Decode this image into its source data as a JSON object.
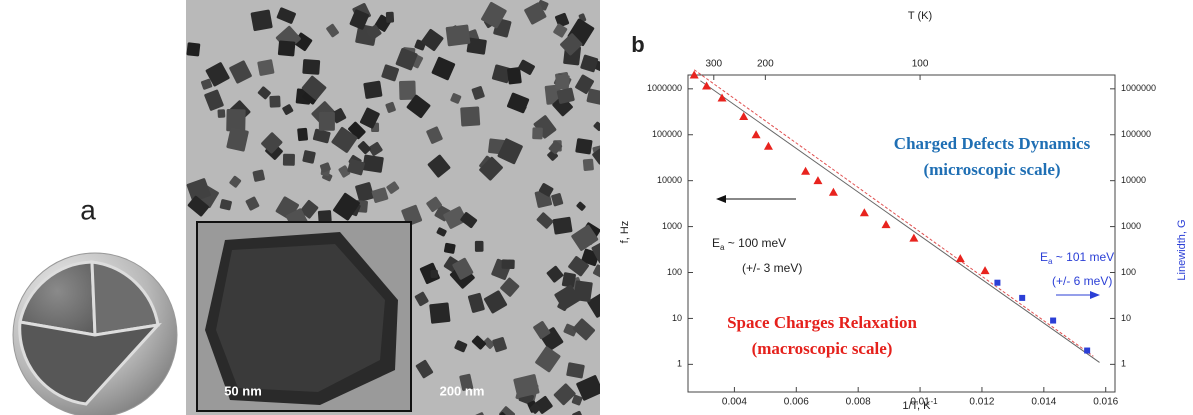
{
  "figure": {
    "label": "a",
    "inset_scale": "50 nm",
    "scale": "200 nm"
  },
  "chart_data": {
    "type": "scatter",
    "panel_label": "b",
    "xlabel": {
      "text": "1/T, K",
      "sup": "-1"
    },
    "x2label": "T (K)",
    "ylabel": "f, Hz",
    "y2label": "Linewidth, G",
    "xlim": [
      0.0025,
      0.0163
    ],
    "xticks": [
      0.004,
      0.006,
      0.008,
      0.01,
      0.012,
      0.014,
      0.016
    ],
    "x2ticks": [
      300,
      200,
      100
    ],
    "x2scale": "reciprocal",
    "ylim": [
      0.25,
      2000000
    ],
    "yticks": [
      1,
      10,
      100,
      1000,
      10000,
      100000,
      1000000
    ],
    "y2lim": [
      0.25,
      2000000
    ],
    "y2ticks": [
      1,
      10,
      100,
      1000,
      10000,
      100000,
      1000000
    ],
    "yscale": "log",
    "y2color": "#2b3fd6",
    "series": [
      {
        "color": "#e8231e",
        "marker": "triangle",
        "x": [
          0.0027,
          0.0031,
          0.0036,
          0.0043,
          0.0047,
          0.0051,
          0.0063,
          0.0067,
          0.0072,
          0.0082,
          0.0089,
          0.0098,
          0.0113,
          0.0121
        ],
        "values": [
          2000000,
          1150000,
          630000,
          250000,
          100000,
          56000,
          16000,
          10000,
          5600,
          2000,
          1100,
          560,
          200,
          110
        ]
      },
      {
        "color": "#2b3fd6",
        "marker": "square",
        "axis": "y2",
        "x": [
          0.0125,
          0.0133,
          0.0143,
          0.0154
        ],
        "values": [
          60,
          28,
          9,
          2
        ]
      }
    ],
    "fit_lines": [
      {
        "color": "#e05050",
        "dash": true,
        "x": [
          0.0027,
          0.0156
        ],
        "values": [
          2600000,
          1.5
        ]
      },
      {
        "color": "#666666",
        "dash": false,
        "x": [
          0.0029,
          0.0158
        ],
        "values": [
          1500000,
          1.1
        ]
      }
    ],
    "annotations": [
      "Charged Defects Dynamics",
      "(microscopic scale)",
      {
        "text": "E",
        "sub": "a",
        "rest": " ~ 100 meV"
      },
      "(+/- 3 meV)",
      {
        "text": "E",
        "sub": "a",
        "rest": " ~ 101 meV"
      },
      "(+/- 6 meV)",
      "Space Charges Relaxation",
      "(macroscopic scale)"
    ]
  }
}
